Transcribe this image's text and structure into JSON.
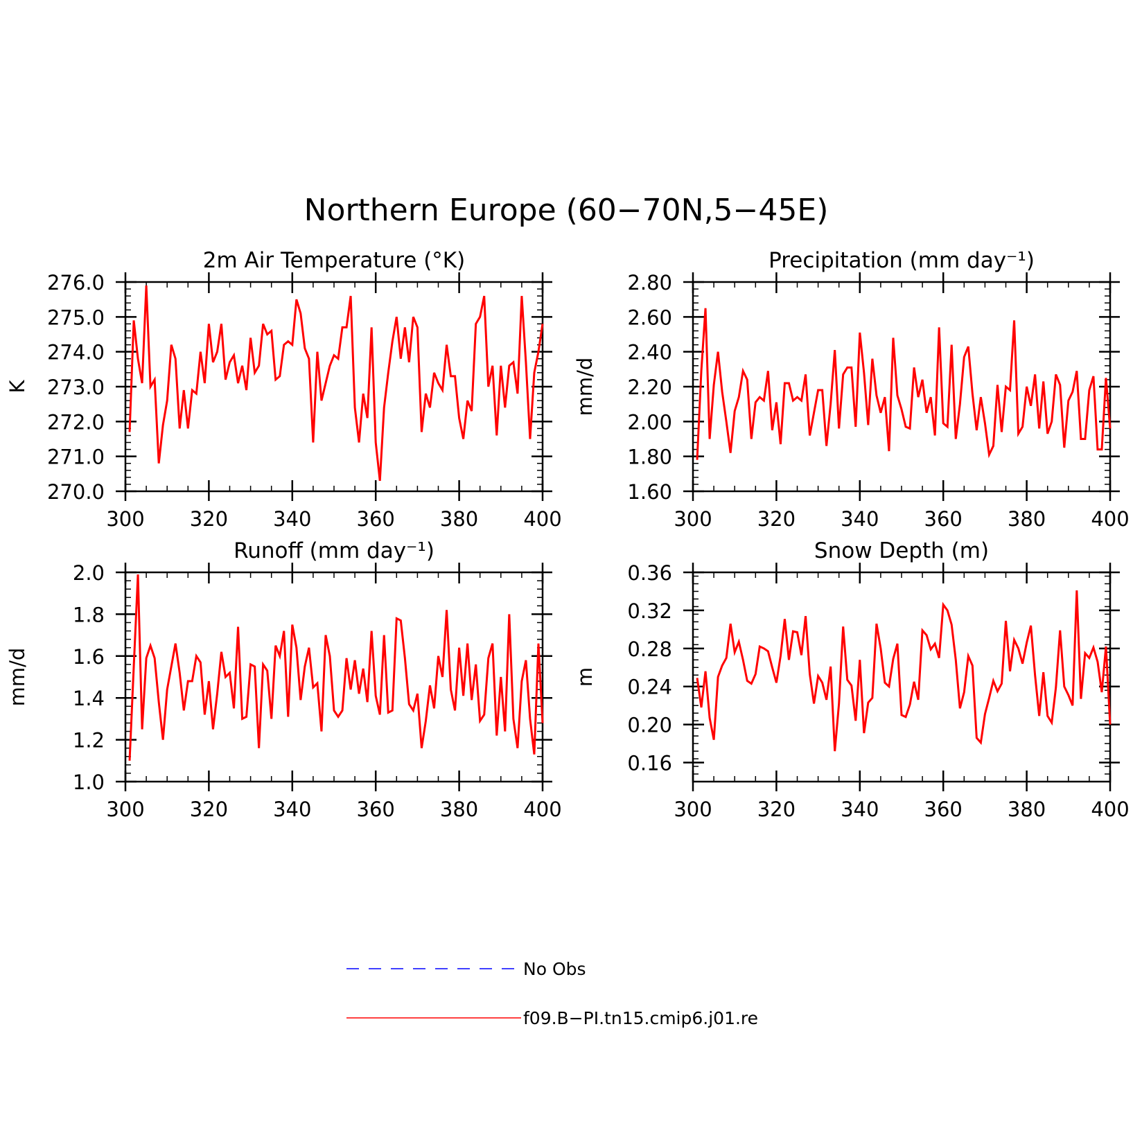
{
  "title": "Northern Europe (60−70N,5−45E)",
  "colors": {
    "model": "#ff0000",
    "obs": "#0000ff",
    "axis": "#000000"
  },
  "legend": [
    {
      "label": "No Obs",
      "color": "#0000ff",
      "style": "dashed"
    },
    {
      "label": "f09.B−PI.tn15.cmip6.j01.re",
      "color": "#ff0000",
      "style": "solid"
    }
  ],
  "chart_data": [
    {
      "type": "line",
      "title": "2m Air Temperature (°K)",
      "ylabel": "K",
      "xlim": [
        300,
        400
      ],
      "ylim": [
        270,
        276
      ],
      "xticks": [
        300,
        320,
        340,
        360,
        380,
        400
      ],
      "yticks": [
        270,
        271,
        272,
        273,
        274,
        275,
        276
      ],
      "ytick_decimals": 1,
      "x_start": 301,
      "series": [
        {
          "values": [
            271.7,
            274.9,
            273.8,
            273.1,
            275.9,
            273.0,
            273.2,
            270.8,
            271.9,
            272.6,
            274.2,
            273.8,
            271.8,
            272.9,
            271.8,
            272.9,
            272.8,
            274.0,
            273.1,
            274.8,
            273.7,
            274.0,
            274.8,
            273.2,
            273.7,
            273.9,
            273.1,
            273.6,
            272.9,
            274.4,
            273.4,
            273.6,
            274.8,
            274.5,
            274.6,
            273.2,
            273.3,
            274.2,
            274.3,
            274.2,
            275.5,
            275.1,
            274.1,
            273.8,
            271.4,
            274.0,
            272.6,
            273.1,
            273.6,
            273.9,
            273.8,
            274.7,
            274.7,
            275.6,
            272.4,
            271.4,
            272.8,
            272.1,
            274.7,
            271.4,
            270.3,
            272.4,
            273.4,
            274.3,
            275.0,
            273.8,
            274.7,
            273.7,
            275.0,
            274.7,
            271.7,
            272.8,
            272.4,
            273.4,
            273.1,
            272.9,
            274.2,
            273.3,
            273.3,
            272.1,
            271.5,
            272.6,
            272.3,
            274.8,
            275.0,
            275.6,
            273.0,
            273.6,
            271.6,
            273.6,
            272.4,
            273.6,
            273.7,
            272.8,
            275.6,
            273.7,
            271.5,
            273.4,
            274.0,
            274.8
          ]
        }
      ]
    },
    {
      "type": "line",
      "title": "Precipitation (mm day⁻¹)",
      "ylabel": "mm/d",
      "xlim": [
        300,
        400
      ],
      "ylim": [
        1.6,
        2.8
      ],
      "xticks": [
        300,
        320,
        340,
        360,
        380,
        400
      ],
      "yticks": [
        1.6,
        1.8,
        2.0,
        2.2,
        2.4,
        2.6,
        2.8
      ],
      "ytick_decimals": 2,
      "x_start": 301,
      "series": [
        {
          "values": [
            1.78,
            2.29,
            2.65,
            1.9,
            2.21,
            2.4,
            2.17,
            2.0,
            1.82,
            2.06,
            2.14,
            2.29,
            2.24,
            1.9,
            2.11,
            2.14,
            2.12,
            2.29,
            1.95,
            2.11,
            1.87,
            2.22,
            2.22,
            2.12,
            2.14,
            2.12,
            2.27,
            1.92,
            2.05,
            2.18,
            2.18,
            1.86,
            2.1,
            2.41,
            1.96,
            2.27,
            2.31,
            2.31,
            1.97,
            2.51,
            2.28,
            1.98,
            2.36,
            2.15,
            2.05,
            2.14,
            1.83,
            2.48,
            2.15,
            2.07,
            1.97,
            1.96,
            2.31,
            2.14,
            2.24,
            2.05,
            2.14,
            1.92,
            2.54,
            1.99,
            1.97,
            2.44,
            1.9,
            2.1,
            2.37,
            2.43,
            2.16,
            1.95,
            2.14,
            1.99,
            1.81,
            1.86,
            2.21,
            1.94,
            2.2,
            2.18,
            2.58,
            1.93,
            1.97,
            2.2,
            2.09,
            2.27,
            1.96,
            2.23,
            1.93,
            2.0,
            2.27,
            2.21,
            1.85,
            2.12,
            2.17,
            2.29,
            1.9,
            1.9,
            2.18,
            2.26,
            1.84,
            1.84,
            2.25,
            1.96
          ]
        }
      ]
    },
    {
      "type": "line",
      "title": "Runoff (mm day⁻¹)",
      "ylabel": "mm/d",
      "xlim": [
        300,
        400
      ],
      "ylim": [
        1.0,
        2.0
      ],
      "xticks": [
        300,
        320,
        340,
        360,
        380,
        400
      ],
      "yticks": [
        1.0,
        1.2,
        1.4,
        1.6,
        1.8,
        2.0
      ],
      "ytick_decimals": 1,
      "x_start": 301,
      "series": [
        {
          "values": [
            1.1,
            1.55,
            1.99,
            1.25,
            1.59,
            1.65,
            1.59,
            1.38,
            1.2,
            1.44,
            1.55,
            1.66,
            1.52,
            1.34,
            1.48,
            1.48,
            1.6,
            1.57,
            1.32,
            1.48,
            1.25,
            1.42,
            1.62,
            1.5,
            1.52,
            1.35,
            1.74,
            1.3,
            1.31,
            1.56,
            1.55,
            1.16,
            1.56,
            1.53,
            1.3,
            1.65,
            1.6,
            1.72,
            1.31,
            1.75,
            1.64,
            1.39,
            1.55,
            1.64,
            1.45,
            1.47,
            1.24,
            1.7,
            1.6,
            1.34,
            1.31,
            1.34,
            1.59,
            1.44,
            1.58,
            1.42,
            1.54,
            1.38,
            1.72,
            1.41,
            1.32,
            1.7,
            1.33,
            1.34,
            1.78,
            1.77,
            1.59,
            1.37,
            1.34,
            1.42,
            1.16,
            1.29,
            1.46,
            1.35,
            1.6,
            1.5,
            1.82,
            1.44,
            1.34,
            1.64,
            1.41,
            1.66,
            1.39,
            1.56,
            1.29,
            1.32,
            1.59,
            1.66,
            1.22,
            1.5,
            1.24,
            1.8,
            1.3,
            1.16,
            1.48,
            1.58,
            1.3,
            1.13,
            1.66,
            1.28
          ]
        }
      ]
    },
    {
      "type": "line",
      "title": "Snow Depth (m)",
      "ylabel": "m",
      "xlim": [
        300,
        400
      ],
      "ylim": [
        0.14,
        0.36
      ],
      "xticks": [
        300,
        320,
        340,
        360,
        380,
        400
      ],
      "yticks": [
        0.16,
        0.2,
        0.24,
        0.28,
        0.32,
        0.36
      ],
      "ytick_decimals": 2,
      "x_start": 301,
      "series": [
        {
          "values": [
            0.249,
            0.218,
            0.256,
            0.207,
            0.184,
            0.25,
            0.262,
            0.27,
            0.306,
            0.276,
            0.287,
            0.268,
            0.246,
            0.243,
            0.253,
            0.282,
            0.28,
            0.277,
            0.26,
            0.244,
            0.272,
            0.311,
            0.268,
            0.298,
            0.297,
            0.273,
            0.314,
            0.253,
            0.222,
            0.251,
            0.244,
            0.226,
            0.261,
            0.172,
            0.222,
            0.303,
            0.247,
            0.241,
            0.204,
            0.268,
            0.191,
            0.223,
            0.228,
            0.306,
            0.28,
            0.244,
            0.24,
            0.269,
            0.285,
            0.21,
            0.208,
            0.221,
            0.245,
            0.226,
            0.299,
            0.294,
            0.279,
            0.285,
            0.27,
            0.326,
            0.32,
            0.305,
            0.268,
            0.217,
            0.234,
            0.272,
            0.262,
            0.186,
            0.181,
            0.211,
            0.228,
            0.246,
            0.235,
            0.243,
            0.309,
            0.256,
            0.289,
            0.28,
            0.264,
            0.286,
            0.304,
            0.252,
            0.209,
            0.255,
            0.209,
            0.202,
            0.239,
            0.299,
            0.24,
            0.231,
            0.22,
            0.341,
            0.227,
            0.275,
            0.27,
            0.281,
            0.266,
            0.234,
            0.282,
            0.2
          ]
        }
      ]
    }
  ]
}
